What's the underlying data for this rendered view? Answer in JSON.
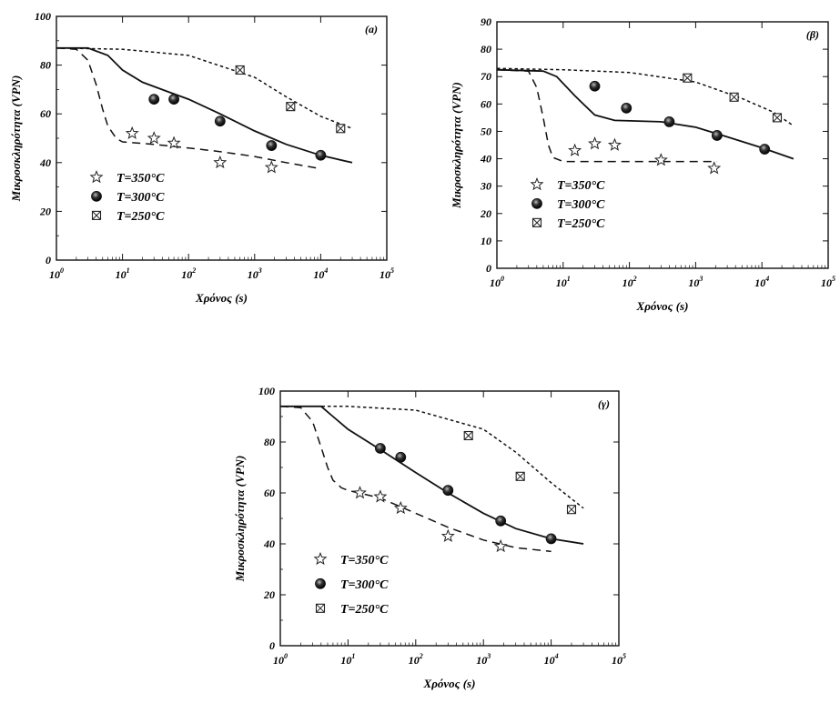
{
  "chart_data": [
    {
      "type": "scatter",
      "panel_label": "(a)",
      "xlabel": "Χρόνος (s)",
      "ylabel": "Μικροσκληρότητα (VPN)",
      "xscale": "log",
      "xlim_exp": [
        0,
        5
      ],
      "ylim": [
        0,
        100
      ],
      "yticks": [
        0,
        20,
        40,
        60,
        80,
        100
      ],
      "legend_placement": "lower-left",
      "grid": false,
      "series": [
        {
          "name": "T=350°C",
          "marker": "star",
          "points": [
            [
              14,
              52
            ],
            [
              30,
              50
            ],
            [
              60,
              48
            ],
            [
              300,
              40
            ],
            [
              1800,
              38
            ]
          ]
        },
        {
          "name": "T=300°C",
          "marker": "sphere",
          "points": [
            [
              30,
              66
            ],
            [
              60,
              66
            ],
            [
              300,
              57
            ],
            [
              1800,
              47
            ],
            [
              10000,
              43
            ]
          ]
        },
        {
          "name": "T=250°C",
          "marker": "boxed-x",
          "points": [
            [
              600,
              78
            ],
            [
              3500,
              63
            ],
            [
              20000,
              54
            ]
          ]
        }
      ],
      "curves": [
        {
          "series": "T=350°C",
          "dash": "long",
          "points": [
            [
              1,
              87
            ],
            [
              2,
              86.5
            ],
            [
              3,
              82
            ],
            [
              4,
              72
            ],
            [
              5,
              62
            ],
            [
              6,
              55
            ],
            [
              8,
              50
            ],
            [
              10,
              48.5
            ],
            [
              30,
              47.5
            ],
            [
              100,
              46
            ],
            [
              300,
              44.5
            ],
            [
              1000,
              42.5
            ],
            [
              3000,
              40
            ],
            [
              10000,
              37.5
            ]
          ]
        },
        {
          "series": "T=300°C",
          "dash": "solid",
          "points": [
            [
              1,
              87
            ],
            [
              3,
              87
            ],
            [
              6,
              84
            ],
            [
              10,
              78
            ],
            [
              20,
              73
            ],
            [
              50,
              69
            ],
            [
              100,
              66
            ],
            [
              300,
              60
            ],
            [
              1000,
              53
            ],
            [
              3000,
              47.5
            ],
            [
              10000,
              43
            ],
            [
              30000,
              40
            ]
          ]
        },
        {
          "series": "T=250°C",
          "dash": "short",
          "points": [
            [
              1,
              87
            ],
            [
              10,
              86.5
            ],
            [
              100,
              84
            ],
            [
              1000,
              75
            ],
            [
              3000,
              67
            ],
            [
              10000,
              59
            ],
            [
              30000,
              54
            ]
          ]
        }
      ]
    },
    {
      "type": "scatter",
      "panel_label": "(β)",
      "xlabel": "Χρόνος (s)",
      "ylabel": "Μικροσκληρότητα (VPN)",
      "xscale": "log",
      "xlim_exp": [
        0,
        5
      ],
      "ylim": [
        0,
        90
      ],
      "yticks": [
        0,
        10,
        20,
        30,
        40,
        50,
        60,
        70,
        80,
        90
      ],
      "legend_placement": "lower-left",
      "grid": false,
      "series": [
        {
          "name": "T=350°C",
          "marker": "star",
          "points": [
            [
              15,
              43
            ],
            [
              30,
              45.5
            ],
            [
              60,
              45
            ],
            [
              300,
              39.5
            ],
            [
              1900,
              36.5
            ]
          ]
        },
        {
          "name": "T=300°C",
          "marker": "sphere",
          "points": [
            [
              30,
              66.5
            ],
            [
              90,
              58.5
            ],
            [
              400,
              53.5
            ],
            [
              2100,
              48.5
            ],
            [
              11000,
              43.5
            ]
          ]
        },
        {
          "name": "T=250°C",
          "marker": "boxed-x",
          "points": [
            [
              750,
              69.5
            ],
            [
              3800,
              62.5
            ],
            [
              17000,
              55
            ]
          ]
        }
      ],
      "curves": [
        {
          "series": "T=350°C",
          "dash": "long",
          "points": [
            [
              1,
              72.5
            ],
            [
              3,
              72
            ],
            [
              4,
              66
            ],
            [
              5,
              55
            ],
            [
              6,
              45
            ],
            [
              7,
              40.5
            ],
            [
              10,
              39
            ],
            [
              100,
              39
            ],
            [
              2100,
              39
            ]
          ]
        },
        {
          "series": "T=300°C",
          "dash": "solid",
          "points": [
            [
              1,
              72.5
            ],
            [
              5,
              72
            ],
            [
              8,
              70
            ],
            [
              15,
              63
            ],
            [
              30,
              56
            ],
            [
              60,
              54
            ],
            [
              300,
              53.5
            ],
            [
              1000,
              51.5
            ],
            [
              3000,
              48
            ],
            [
              10000,
              44
            ],
            [
              30000,
              40
            ]
          ]
        },
        {
          "series": "T=250°C",
          "dash": "short",
          "points": [
            [
              1,
              73
            ],
            [
              10,
              72.5
            ],
            [
              100,
              71.5
            ],
            [
              1000,
              68
            ],
            [
              5000,
              62
            ],
            [
              15000,
              57
            ],
            [
              30000,
              52
            ]
          ]
        }
      ]
    },
    {
      "type": "scatter",
      "panel_label": "(γ)",
      "xlabel": "Χρόνος (s)",
      "ylabel": "Μικροσκληρότητα (VPN)",
      "xscale": "log",
      "xlim_exp": [
        0,
        5
      ],
      "ylim": [
        0,
        100
      ],
      "yticks": [
        0,
        20,
        40,
        60,
        80,
        100
      ],
      "legend_placement": "lower-left",
      "grid": false,
      "series": [
        {
          "name": "T=350°C",
          "marker": "star",
          "points": [
            [
              15,
              60
            ],
            [
              30,
              58.5
            ],
            [
              60,
              54
            ],
            [
              300,
              43
            ],
            [
              1800,
              39
            ]
          ]
        },
        {
          "name": "T=300°C",
          "marker": "sphere",
          "points": [
            [
              30,
              77.5
            ],
            [
              60,
              74
            ],
            [
              300,
              61
            ],
            [
              1800,
              49
            ],
            [
              10000,
              42
            ]
          ]
        },
        {
          "name": "T=250°C",
          "marker": "boxed-x",
          "points": [
            [
              600,
              82.5
            ],
            [
              3500,
              66.5
            ],
            [
              20000,
              53.5
            ]
          ]
        }
      ],
      "curves": [
        {
          "series": "T=350°C",
          "dash": "long",
          "points": [
            [
              1,
              94
            ],
            [
              2,
              93.5
            ],
            [
              3,
              88
            ],
            [
              4,
              78
            ],
            [
              5,
              70
            ],
            [
              6,
              65
            ],
            [
              8,
              62
            ],
            [
              10,
              61
            ],
            [
              30,
              58
            ],
            [
              100,
              52
            ],
            [
              300,
              46.5
            ],
            [
              1000,
              41.5
            ],
            [
              3000,
              38.5
            ],
            [
              10000,
              37
            ]
          ]
        },
        {
          "series": "T=300°C",
          "dash": "solid",
          "points": [
            [
              1,
              94
            ],
            [
              4,
              94
            ],
            [
              6,
              90
            ],
            [
              10,
              85
            ],
            [
              30,
              77
            ],
            [
              100,
              68
            ],
            [
              300,
              60
            ],
            [
              1000,
              52
            ],
            [
              3000,
              46
            ],
            [
              10000,
              42
            ],
            [
              30000,
              40
            ]
          ]
        },
        {
          "series": "T=250°C",
          "dash": "short",
          "points": [
            [
              1,
              94
            ],
            [
              10,
              94
            ],
            [
              100,
              92.5
            ],
            [
              1000,
              85
            ],
            [
              3000,
              76
            ],
            [
              10000,
              64
            ],
            [
              30000,
              54
            ]
          ]
        }
      ]
    }
  ]
}
